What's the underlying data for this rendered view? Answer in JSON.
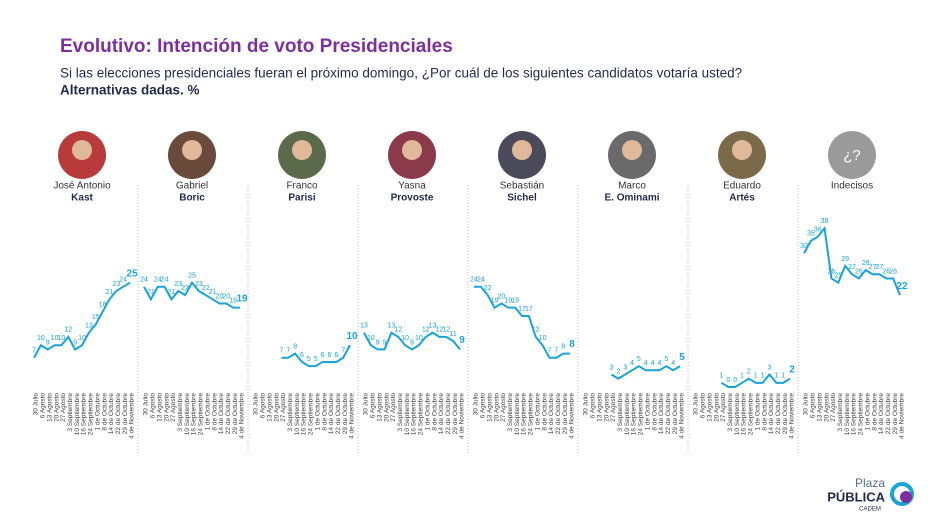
{
  "chart_data": {
    "type": "line",
    "title": "Evolutivo: Intención de voto Presidenciales",
    "subtitle": "Si las elecciones presidenciales fueran el próximo domingo, ¿Por cuál de los siguientes candidatos votaría usted?",
    "subtitle2": "Alternativas dadas. %",
    "x": [
      "30 Julio",
      "6 Agosto",
      "13 Agosto",
      "20 Agosto",
      "27 Agosto",
      "3 Septiembre",
      "10 Septiembre",
      "16 Septiembre",
      "24 Septiembre",
      "1 de Octubre",
      "8 de Octubre",
      "14 de Octubre",
      "22 de Octubre",
      "29 de Octubre",
      "4 de Noviembre"
    ],
    "ylim": [
      0,
      40
    ],
    "color": "#1aa3d9",
    "series": [
      {
        "first_name": "José Antonio",
        "name": "Kast",
        "values": [
          7,
          10,
          9,
          10,
          10,
          12,
          9,
          10,
          13,
          15,
          18,
          21,
          23,
          24,
          25
        ]
      },
      {
        "first_name": "Gabriel",
        "name": "Boric",
        "values": [
          24,
          21,
          24,
          24,
          21,
          23,
          22,
          25,
          23,
          22,
          21,
          20,
          20,
          19,
          19
        ]
      },
      {
        "first_name": "Franco",
        "name": "Parisi",
        "values": [
          null,
          null,
          null,
          null,
          7,
          7,
          8,
          6,
          5,
          5,
          6,
          6,
          6,
          7,
          10
        ]
      },
      {
        "first_name": "Yasna",
        "name": "Provoste",
        "values": [
          13,
          10,
          9,
          9,
          13,
          12,
          10,
          9,
          10,
          12,
          13,
          12,
          12,
          11,
          9
        ]
      },
      {
        "first_name": "Sebastián",
        "name": "Sichel",
        "values": [
          24,
          24,
          22,
          19,
          20,
          19,
          19,
          17,
          17,
          12,
          10,
          7,
          7,
          8,
          8
        ]
      },
      {
        "first_name": "Marco",
        "name": "E. Ominami",
        "values": [
          null,
          null,
          null,
          null,
          3,
          2,
          3,
          4,
          5,
          4,
          4,
          4,
          5,
          4,
          5
        ]
      },
      {
        "first_name": "Eduardo",
        "name": "Artés",
        "values": [
          null,
          null,
          null,
          null,
          1,
          0,
          0,
          1,
          2,
          1,
          1,
          3,
          1,
          1,
          2
        ]
      },
      {
        "name": "Indecisos",
        "icon_label": "¿?",
        "values": [
          32,
          35,
          36,
          38,
          26,
          25,
          29,
          27,
          26,
          28,
          27,
          27,
          26,
          26,
          22
        ]
      }
    ],
    "footer": {
      "brand1": "Plaza",
      "brand2": "PÚBLICA",
      "brand3": "CADEM"
    }
  }
}
